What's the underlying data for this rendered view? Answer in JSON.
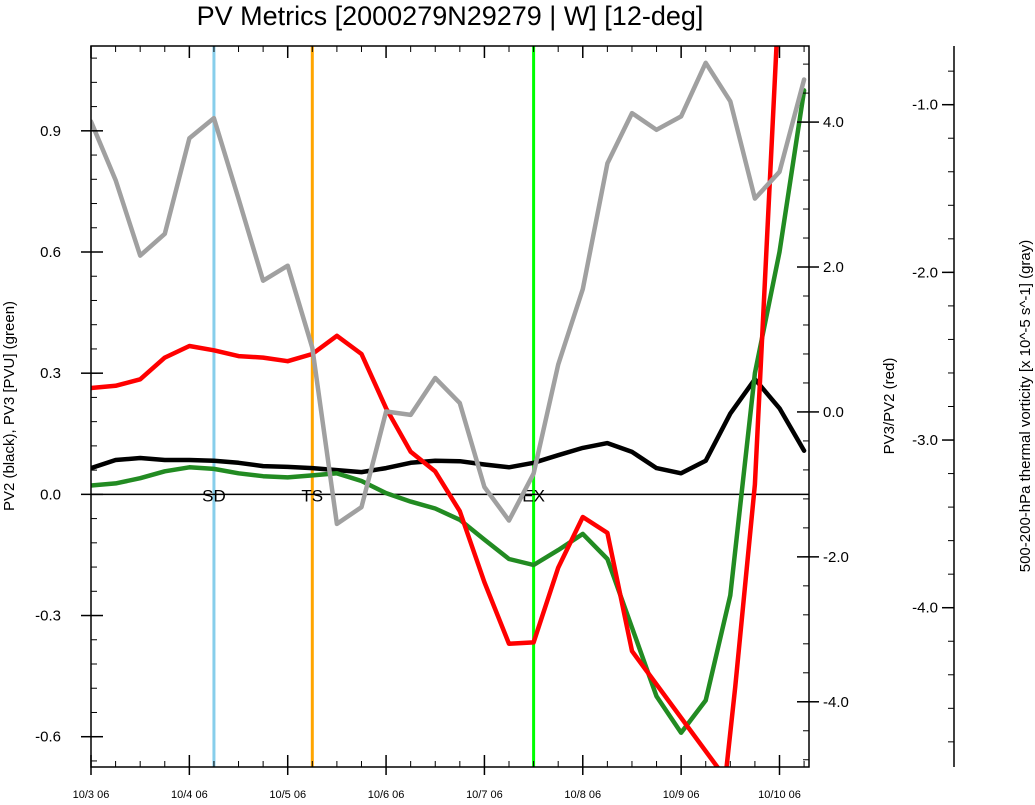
{
  "chart_data": {
    "type": "line",
    "title": "PV Metrics [2000279N29279 | W] [12-deg]",
    "ylabel_left": "PV2 (black), PV3 [PVU] (green)",
    "ylabel_right1": "PV3/PV2 (red)",
    "ylabel_right2": "500-200-hPa thermal vorticity [x 10^-5 s^-1] (gray)",
    "x_range": [
      0,
      7.3
    ],
    "x_ticks": [
      {
        "x": 0,
        "label": "10/3 06"
      },
      {
        "x": 1,
        "label": "10/4 06"
      },
      {
        "x": 2,
        "label": "10/5 06"
      },
      {
        "x": 3,
        "label": "10/6 06"
      },
      {
        "x": 4,
        "label": "10/7 06"
      },
      {
        "x": 5,
        "label": "10/8 06"
      },
      {
        "x": 6,
        "label": "10/9 06"
      },
      {
        "x": 7,
        "label": "10/10 06"
      }
    ],
    "y_left": {
      "range": [
        -0.675,
        1.11
      ],
      "ticks": [
        {
          "v": 0.9,
          "label": "0.9"
        },
        {
          "v": 0.6,
          "label": "0.6"
        },
        {
          "v": 0.3,
          "label": "0.3"
        },
        {
          "v": 0.0,
          "label": "0.0"
        },
        {
          "v": -0.3,
          "label": "-0.3"
        },
        {
          "v": -0.6,
          "label": "-0.6"
        }
      ]
    },
    "y_right1": {
      "range": [
        -4.9,
        5.05
      ],
      "ticks": [
        {
          "v": 4.0,
          "label": "4.0"
        },
        {
          "v": 2.0,
          "label": "2.0"
        },
        {
          "v": 0.0,
          "label": "0.0"
        },
        {
          "v": -2.0,
          "label": "-2.0"
        },
        {
          "v": -4.0,
          "label": "-4.0"
        }
      ]
    },
    "y_right2": {
      "range": [
        -4.95,
        -0.65
      ],
      "ticks": [
        {
          "v": -1.0,
          "label": "-1.0"
        },
        {
          "v": -2.0,
          "label": "-2.0"
        },
        {
          "v": -3.0,
          "label": "-3.0"
        },
        {
          "v": -4.0,
          "label": "-4.0"
        }
      ]
    },
    "markers": [
      {
        "x": 1.25,
        "label": "SD",
        "color": "#87ceeb"
      },
      {
        "x": 2.25,
        "label": "TS",
        "color": "#ffa500"
      },
      {
        "x": 4.5,
        "label": "EX",
        "color": "#00ff00"
      }
    ],
    "series": [
      {
        "axis": "left",
        "color": "#000000",
        "x": [
          0,
          0.25,
          0.5,
          0.75,
          1,
          1.25,
          1.5,
          1.75,
          2,
          2.25,
          2.5,
          2.75,
          3,
          3.25,
          3.5,
          3.75,
          4,
          4.25,
          4.5,
          4.75,
          5,
          5.25,
          5.5,
          5.75,
          6,
          6.25,
          6.5,
          6.75,
          7,
          7.25
        ],
        "values": [
          0.065,
          0.085,
          0.09,
          0.085,
          0.085,
          0.083,
          0.078,
          0.07,
          0.068,
          0.065,
          0.06,
          0.055,
          0.065,
          0.078,
          0.083,
          0.082,
          0.074,
          0.067,
          0.078,
          0.097,
          0.115,
          0.127,
          0.105,
          0.065,
          0.052,
          0.083,
          0.2,
          0.285,
          0.213,
          0.108
        ]
      },
      {
        "axis": "left",
        "color": "#228b22",
        "x": [
          0,
          0.25,
          0.5,
          0.75,
          1,
          1.25,
          1.5,
          1.75,
          2,
          2.25,
          2.5,
          2.75,
          3,
          3.25,
          3.5,
          3.75,
          4,
          4.25,
          4.5,
          4.75,
          5,
          5.25,
          5.5,
          5.75,
          6,
          6.25,
          6.5,
          6.75,
          7,
          7.25
        ],
        "values": [
          0.022,
          0.027,
          0.04,
          0.057,
          0.067,
          0.063,
          0.052,
          0.045,
          0.042,
          0.047,
          0.052,
          0.033,
          0.003,
          -0.018,
          -0.035,
          -0.063,
          -0.112,
          -0.16,
          -0.175,
          -0.138,
          -0.098,
          -0.16,
          -0.33,
          -0.5,
          -0.59,
          -0.51,
          -0.25,
          0.3,
          0.6,
          1.0
        ]
      },
      {
        "axis": "right1",
        "color": "#ff0000",
        "x": [
          0,
          0.25,
          0.5,
          0.75,
          1,
          1.25,
          1.5,
          1.75,
          2,
          2.25,
          2.5,
          2.75,
          3,
          3.25,
          3.5,
          3.75,
          4,
          4.25,
          4.5,
          4.75,
          5,
          5.25,
          5.5,
          6.45,
          6.55,
          6.75,
          6.97
        ],
        "values": [
          0.33,
          0.36,
          0.45,
          0.75,
          0.91,
          0.85,
          0.77,
          0.75,
          0.7,
          0.8,
          1.05,
          0.8,
          0.05,
          -0.55,
          -0.82,
          -1.37,
          -2.35,
          -3.2,
          -3.18,
          -2.15,
          -1.45,
          -1.67,
          -3.3,
          -5.05,
          -3.8,
          -1.0,
          5.05
        ]
      },
      {
        "axis": "right2",
        "color": "#a0a0a0",
        "x": [
          0,
          0.25,
          0.5,
          0.75,
          1,
          1.25,
          1.5,
          1.75,
          2,
          2.25,
          2.5,
          2.75,
          3,
          3.25,
          3.5,
          3.75,
          4,
          4.25,
          4.5,
          4.75,
          5,
          5.25,
          5.5,
          5.75,
          6,
          6.25,
          6.5,
          6.75,
          7,
          7.25
        ],
        "values": [
          -1.1,
          -1.45,
          -1.9,
          -1.77,
          -1.2,
          -1.08,
          -1.56,
          -2.05,
          -1.96,
          -2.45,
          -3.5,
          -3.4,
          -2.83,
          -2.85,
          -2.63,
          -2.78,
          -3.28,
          -3.48,
          -3.2,
          -2.55,
          -2.1,
          -1.35,
          -1.05,
          -1.15,
          -1.07,
          -0.75,
          -0.98,
          -1.56,
          -1.4,
          -0.85
        ]
      }
    ]
  }
}
